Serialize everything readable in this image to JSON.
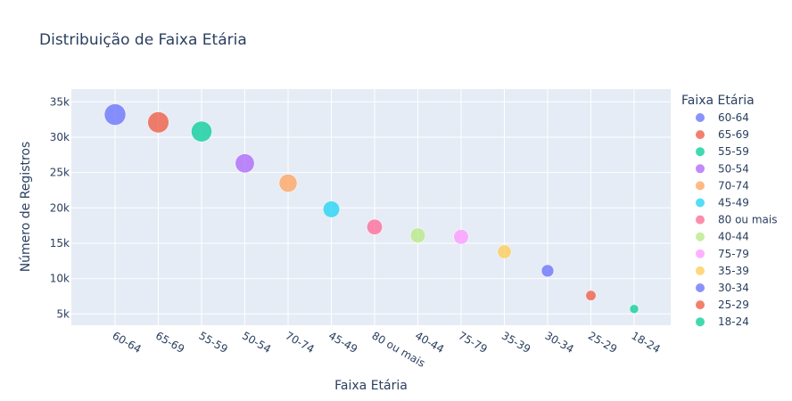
{
  "chart_data": {
    "type": "scatter",
    "title": "Distribuição de Faixa Etária",
    "xlabel": "Faixa Etária",
    "ylabel": "Número de Registros",
    "legend_title": "Faixa Etária",
    "legend_position": "right",
    "grid": true,
    "ylim": [
      3400,
      36800
    ],
    "yticks": [
      5000,
      10000,
      15000,
      20000,
      25000,
      30000,
      35000
    ],
    "ytick_labels": [
      "5k",
      "10k",
      "15k",
      "20k",
      "25k",
      "30k",
      "35k"
    ],
    "categories": [
      "60-64",
      "65-69",
      "55-59",
      "50-54",
      "70-74",
      "45-49",
      "80 ou mais",
      "40-44",
      "75-79",
      "35-39",
      "30-34",
      "25-29",
      "18-24"
    ],
    "series": [
      {
        "name": "60-64",
        "x": "60-64",
        "y": 33200,
        "color": "#636efa"
      },
      {
        "name": "65-69",
        "x": "65-69",
        "y": 32100,
        "color": "#EF553B"
      },
      {
        "name": "55-59",
        "x": "55-59",
        "y": 30800,
        "color": "#00cc96"
      },
      {
        "name": "50-54",
        "x": "50-54",
        "y": 26300,
        "color": "#ab63fa"
      },
      {
        "name": "70-74",
        "x": "70-74",
        "y": 23500,
        "color": "#FFA15A"
      },
      {
        "name": "45-49",
        "x": "45-49",
        "y": 19800,
        "color": "#19d3f3"
      },
      {
        "name": "80 ou mais",
        "x": "80 ou mais",
        "y": 17300,
        "color": "#FF6692"
      },
      {
        "name": "40-44",
        "x": "40-44",
        "y": 16100,
        "color": "#B6E880"
      },
      {
        "name": "75-79",
        "x": "75-79",
        "y": 15900,
        "color": "#FF97FF"
      },
      {
        "name": "35-39",
        "x": "35-39",
        "y": 13800,
        "color": "#FECB52"
      },
      {
        "name": "30-34",
        "x": "30-34",
        "y": 11100,
        "color": "#636efa"
      },
      {
        "name": "25-29",
        "x": "25-29",
        "y": 7600,
        "color": "#EF553B"
      },
      {
        "name": "18-24",
        "x": "18-24",
        "y": 5700,
        "color": "#00cc96"
      }
    ]
  }
}
